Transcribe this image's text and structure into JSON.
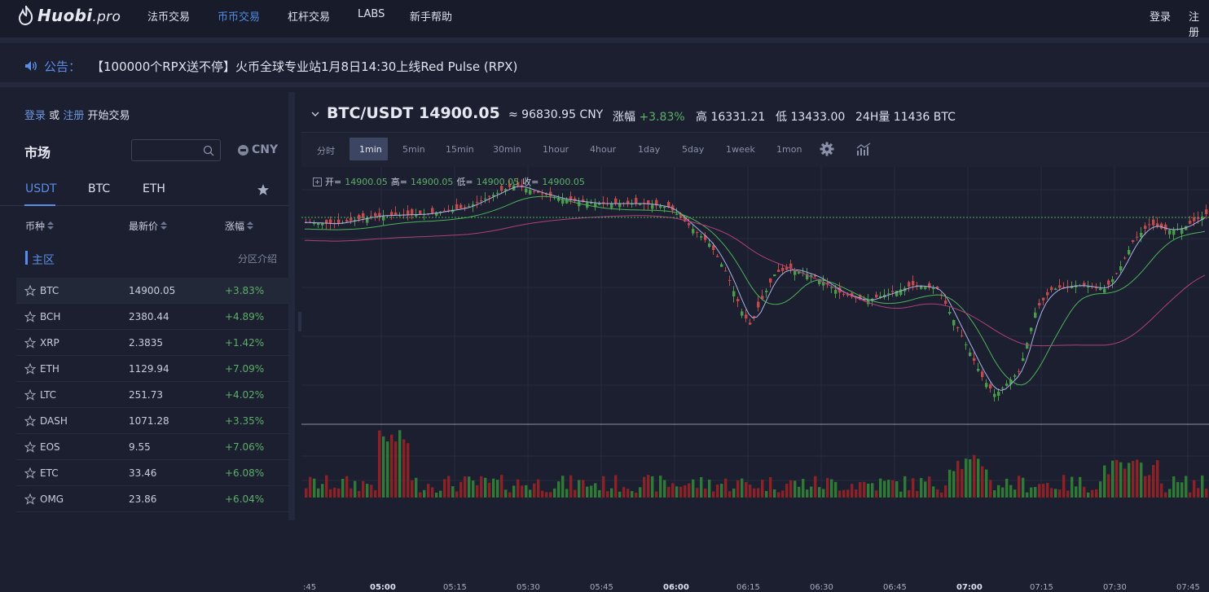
{
  "brand": {
    "name": "Huobi",
    "suffix": ".pro"
  },
  "nav": {
    "items": [
      "法币交易",
      "币币交易",
      "杠杆交易",
      "LABS",
      "新手帮助"
    ],
    "active": "币币交易",
    "login": "登录",
    "register": "注册"
  },
  "notice": {
    "label": "公告：",
    "text": "【100000个RPX送不停】火币全球专业站1月8日14:30上线Red Pulse (RPX)"
  },
  "sidebar": {
    "login_link": "登录",
    "or_text": "或",
    "register_link": "注册",
    "start_text": "开始交易",
    "market_title": "市场",
    "search_placeholder": "",
    "currency_toggle": "CNY",
    "tabs": [
      "USDT",
      "BTC",
      "ETH"
    ],
    "active_tab": "USDT",
    "columns": {
      "symbol": "币种",
      "price": "最新价",
      "change": "涨幅"
    },
    "zone_label": "主区",
    "zone_intro": "分区介绍",
    "rows": [
      {
        "symbol": "BTC",
        "price": "14900.05",
        "change": "+3.83%"
      },
      {
        "symbol": "BCH",
        "price": "2380.44",
        "change": "+4.89%"
      },
      {
        "symbol": "XRP",
        "price": "2.3835",
        "change": "+1.42%"
      },
      {
        "symbol": "ETH",
        "price": "1129.94",
        "change": "+7.09%"
      },
      {
        "symbol": "LTC",
        "price": "251.73",
        "change": "+4.02%"
      },
      {
        "symbol": "DASH",
        "price": "1071.28",
        "change": "+3.35%"
      },
      {
        "symbol": "EOS",
        "price": "9.55",
        "change": "+7.06%"
      },
      {
        "symbol": "ETC",
        "price": "33.46",
        "change": "+6.08%"
      },
      {
        "symbol": "OMG",
        "price": "23.86",
        "change": "+6.04%"
      }
    ]
  },
  "ticker": {
    "pair": "BTC/USDT",
    "price": "14900.05",
    "cny": "≈ 96830.95 CNY",
    "change_label": "涨幅",
    "change_value": "+3.83%",
    "high_label": "高",
    "high_value": "16331.21",
    "low_label": "低",
    "low_value": "13433.00",
    "volume_label": "24H量",
    "volume_value": "11436 BTC"
  },
  "intervals": [
    "分时",
    "1min",
    "5min",
    "15min",
    "30min",
    "1hour",
    "4hour",
    "1day",
    "5day",
    "1week",
    "1mon"
  ],
  "active_interval": "1min",
  "ohlc": {
    "open_label": "开=",
    "open": "14900.05",
    "high_label": "高=",
    "high": "14900.05",
    "low_label": "低=",
    "low": "14900.05",
    "close_label": "收=",
    "close": "14900.05"
  },
  "time_axis": [
    {
      "label": ":45",
      "bold": false
    },
    {
      "label": "05:00",
      "bold": true
    },
    {
      "label": "05:15",
      "bold": false
    },
    {
      "label": "05:30",
      "bold": false
    },
    {
      "label": "05:45",
      "bold": false
    },
    {
      "label": "06:00",
      "bold": true
    },
    {
      "label": "06:15",
      "bold": false
    },
    {
      "label": "06:30",
      "bold": false
    },
    {
      "label": "06:45",
      "bold": false
    },
    {
      "label": "07:00",
      "bold": true
    },
    {
      "label": "07:15",
      "bold": false
    },
    {
      "label": "07:30",
      "bold": false
    },
    {
      "label": "07:45",
      "bold": false
    }
  ],
  "colors": {
    "up": "#4a9c4a",
    "down": "#c24a4a",
    "ma_fast": "#a9b3e6",
    "ma_mid": "#4db35a",
    "ma_slow": "#b0407a",
    "accent": "#5b8de4"
  }
}
